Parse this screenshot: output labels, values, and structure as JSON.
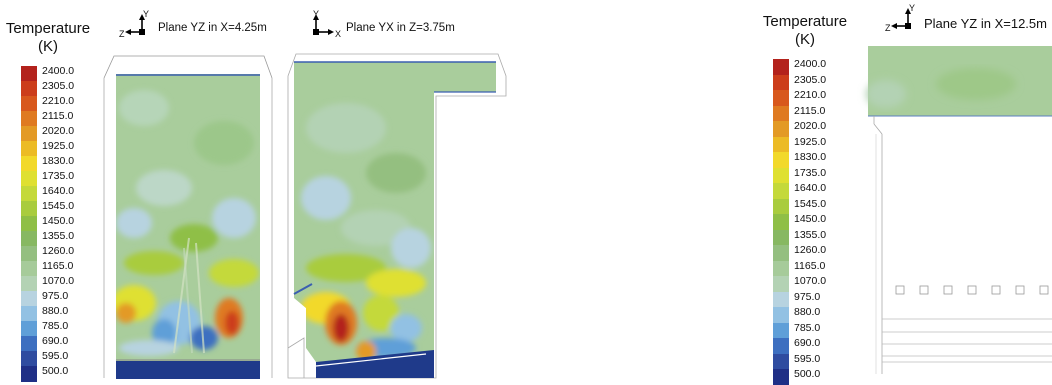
{
  "legends": [
    {
      "title_line1": "Temperature",
      "title_line2": "(K)",
      "ticks": [
        "2400.0",
        "2305.0",
        "2210.0",
        "2115.0",
        "2020.0",
        "1925.0",
        "1830.0",
        "1735.0",
        "1640.0",
        "1545.0",
        "1450.0",
        "1355.0",
        "1260.0",
        "1165.0",
        "1070.0",
        "975.0",
        "880.0",
        "785.0",
        "690.0",
        "595.0",
        "500.0"
      ]
    },
    {
      "title_line1": "Temperature",
      "title_line2": "(K)",
      "ticks": [
        "2400.0",
        "2305.0",
        "2210.0",
        "2115.0",
        "2020.0",
        "1925.0",
        "1830.0",
        "1735.0",
        "1640.0",
        "1545.0",
        "1450.0",
        "1355.0",
        "1260.0",
        "1165.0",
        "1070.0",
        "975.0",
        "880.0",
        "785.0",
        "690.0",
        "595.0",
        "500.0"
      ]
    }
  ],
  "colormap": [
    "#b3221c",
    "#cc3d1b",
    "#d8581d",
    "#df7a21",
    "#e39a25",
    "#ecbb25",
    "#f2d92a",
    "#dfe031",
    "#c4d93a",
    "#a9cc3e",
    "#8fbf46",
    "#87b862",
    "#94bf80",
    "#a6cb9a",
    "#b3d2b4",
    "#b7d3e0",
    "#92c1e3",
    "#5f9fd8",
    "#3d6fc0",
    "#2f4ca0",
    "#1f2f86"
  ],
  "planes": [
    {
      "title": "Plane YZ in X=4.25m",
      "axis_up": "Y",
      "axis_side": "Z"
    },
    {
      "title": "Plane YX in Z=3.75m",
      "axis_up": "Y",
      "axis_side": "X"
    },
    {
      "title": "Plane YZ in X=12.5m",
      "axis_up": "Y",
      "axis_side": "Z"
    }
  ]
}
